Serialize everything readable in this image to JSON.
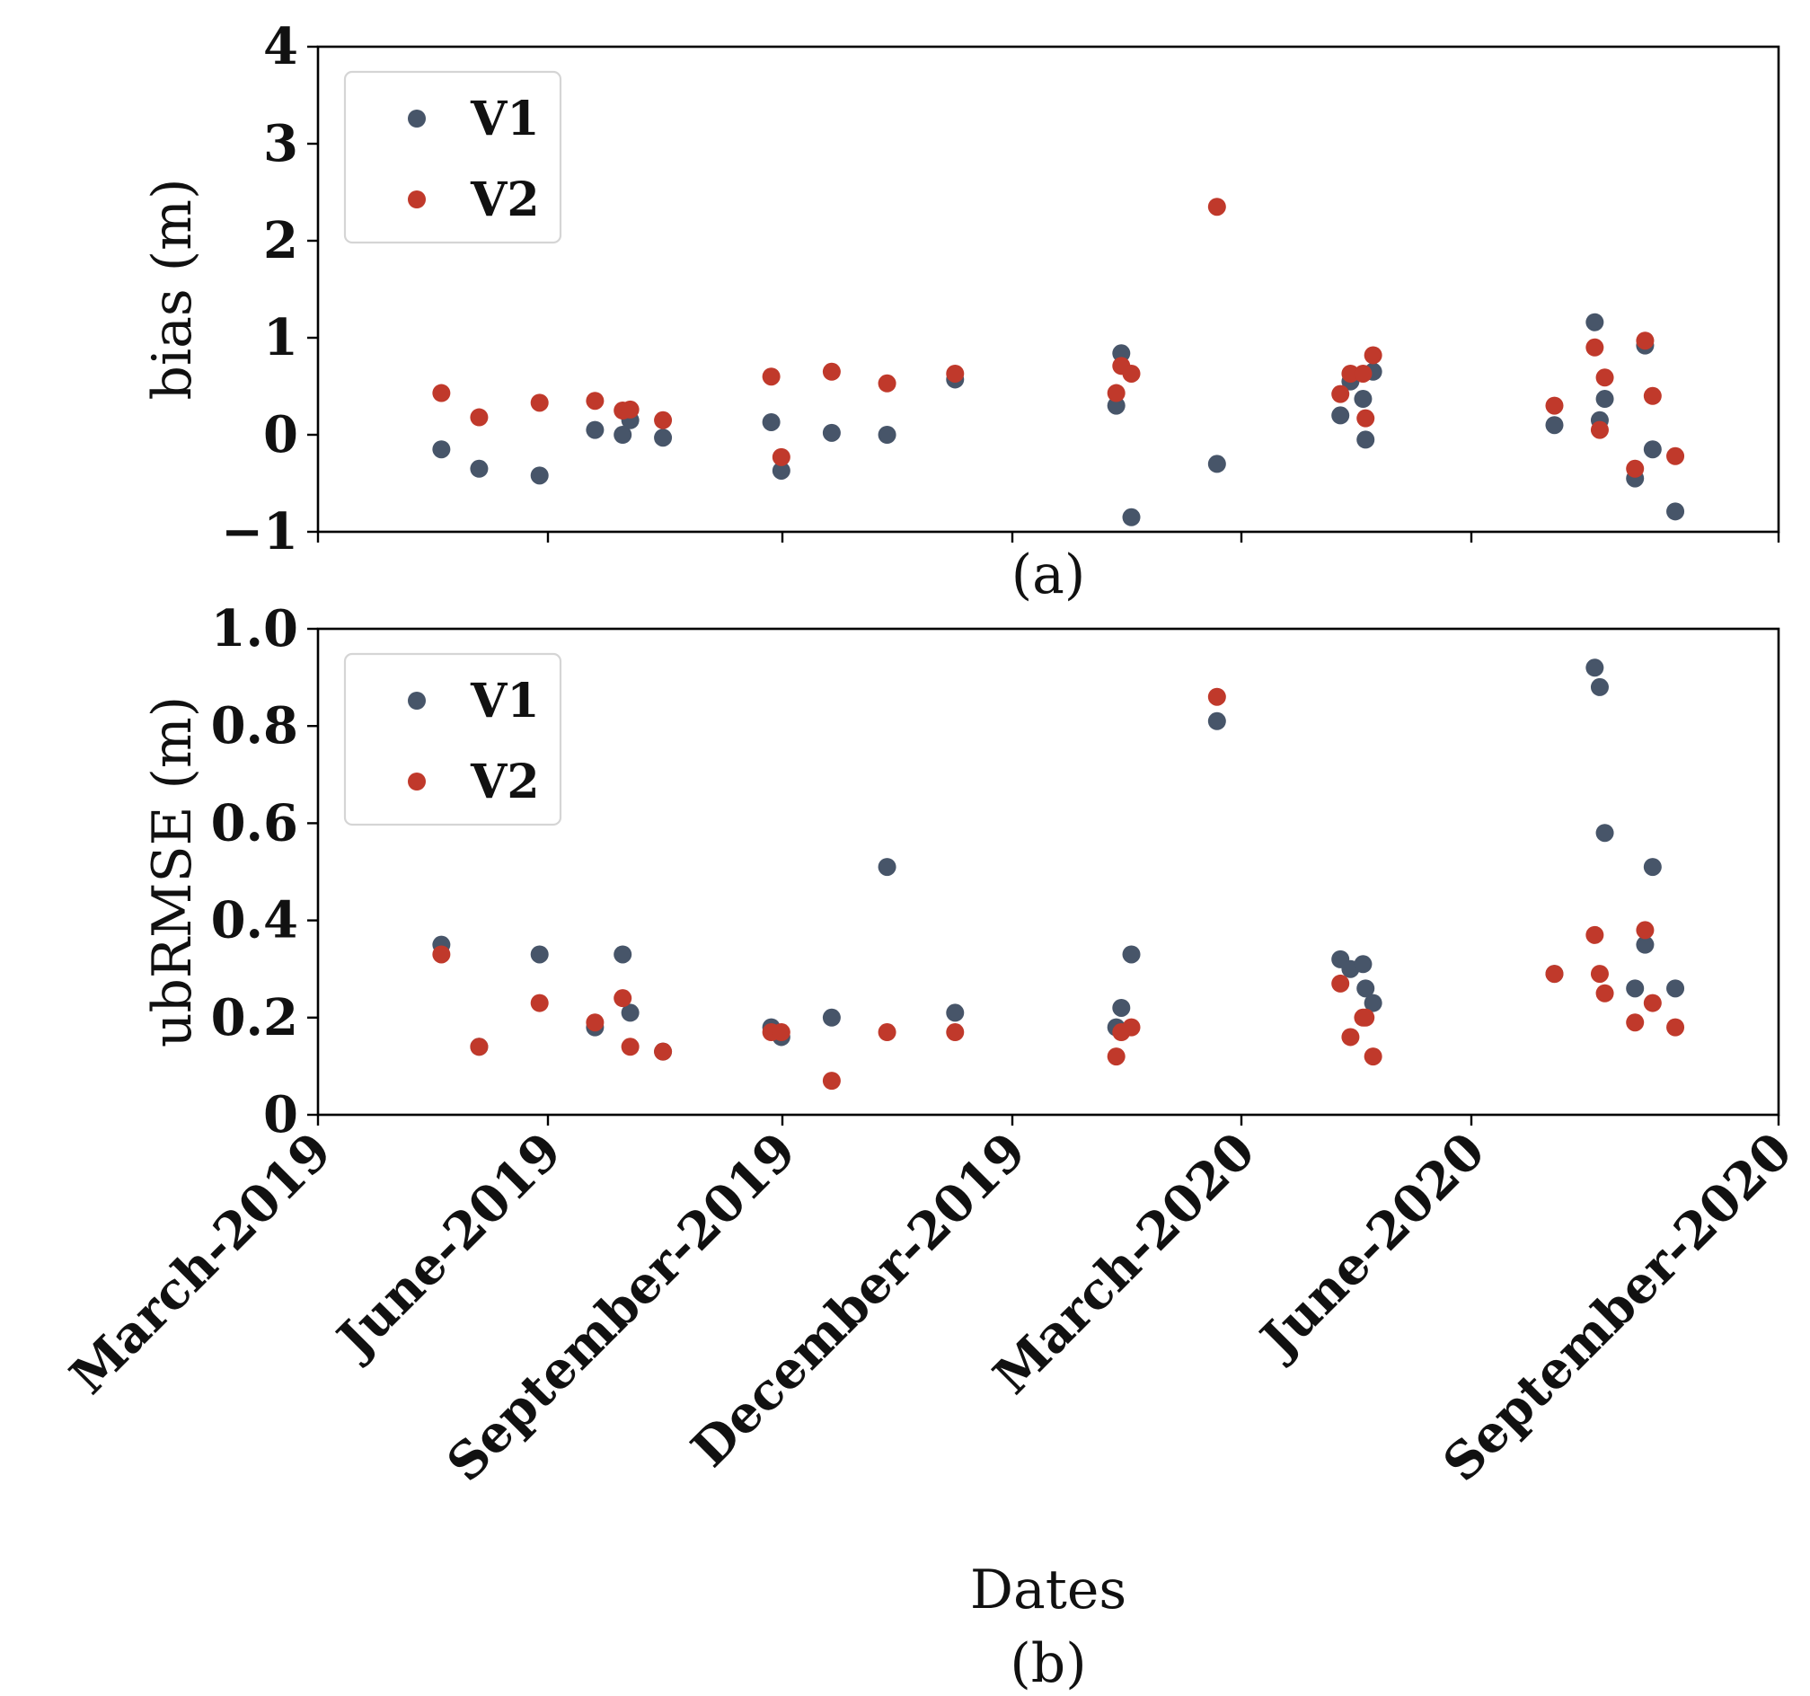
{
  "chart_data": [
    {
      "type": "scatter",
      "panel_label": "(a)",
      "ylabel": "bias (m)",
      "xlabel": "",
      "ylim": [
        -1,
        4
      ],
      "yticks": [
        "−1",
        "0",
        "1",
        "2",
        "3",
        "4"
      ],
      "ytick_values": [
        -1,
        0,
        1,
        2,
        3,
        4
      ],
      "x_ticks": [
        "March-2019",
        "June-2019",
        "September-2019",
        "December-2019",
        "March-2020",
        "June-2020",
        "September-2020"
      ],
      "x_range_days": [
        0,
        580
      ],
      "legend_position": "upper-left",
      "series": [
        {
          "name": "V1",
          "color": "#475569",
          "x_days": [
            49,
            64,
            88,
            110,
            121,
            124,
            137,
            180,
            184,
            204,
            226,
            253,
            317,
            319,
            323,
            357,
            406,
            410,
            415,
            416,
            419,
            491,
            507,
            509,
            511,
            523,
            527,
            530,
            539
          ],
          "y": [
            -0.15,
            -0.35,
            -0.42,
            0.05,
            0.0,
            0.15,
            -0.03,
            0.13,
            -0.37,
            0.02,
            0.0,
            0.57,
            0.3,
            0.84,
            -0.85,
            -0.3,
            0.2,
            0.55,
            0.37,
            -0.05,
            0.65,
            0.1,
            1.16,
            0.15,
            0.37,
            -0.45,
            0.92,
            -0.15,
            -0.79
          ]
        },
        {
          "name": "V2",
          "color": "#c0392b",
          "x_days": [
            49,
            64,
            88,
            110,
            121,
            124,
            137,
            180,
            184,
            204,
            226,
            253,
            317,
            319,
            323,
            357,
            406,
            410,
            415,
            416,
            419,
            491,
            507,
            509,
            511,
            523,
            527,
            530,
            539
          ],
          "y": [
            0.43,
            0.18,
            0.33,
            0.35,
            0.25,
            0.26,
            0.15,
            0.6,
            -0.23,
            0.65,
            0.53,
            0.63,
            0.43,
            0.71,
            0.63,
            2.35,
            0.42,
            0.63,
            0.63,
            0.17,
            0.82,
            0.3,
            0.9,
            0.05,
            0.59,
            -0.35,
            0.97,
            0.4,
            -0.22
          ]
        }
      ]
    },
    {
      "type": "scatter",
      "panel_label": "(b)",
      "ylabel": "ubRMSE (m)",
      "xlabel": "Dates",
      "ylim": [
        0,
        1.0
      ],
      "yticks": [
        "0",
        "0.2",
        "0.4",
        "0.6",
        "0.8",
        "1.0"
      ],
      "ytick_values": [
        0,
        0.2,
        0.4,
        0.6,
        0.8,
        1.0
      ],
      "x_ticks": [
        "March-2019",
        "June-2019",
        "September-2019",
        "December-2019",
        "March-2020",
        "June-2020",
        "September-2020"
      ],
      "x_range_days": [
        0,
        580
      ],
      "legend_position": "upper-left",
      "series": [
        {
          "name": "V1",
          "color": "#475569",
          "x_days": [
            49,
            64,
            88,
            110,
            121,
            124,
            137,
            180,
            184,
            204,
            226,
            253,
            317,
            319,
            323,
            357,
            406,
            410,
            415,
            416,
            419,
            491,
            507,
            509,
            511,
            523,
            527,
            530,
            539
          ],
          "y": [
            0.35,
            0.14,
            0.33,
            0.18,
            0.33,
            0.21,
            0.13,
            0.18,
            0.16,
            0.2,
            0.51,
            0.21,
            0.18,
            0.22,
            0.33,
            0.81,
            0.32,
            0.3,
            0.31,
            0.26,
            0.23,
            0.29,
            0.92,
            0.88,
            0.58,
            0.26,
            0.35,
            0.51,
            0.26
          ]
        },
        {
          "name": "V2",
          "color": "#c0392b",
          "x_days": [
            49,
            64,
            88,
            110,
            121,
            124,
            137,
            180,
            184,
            204,
            226,
            253,
            317,
            319,
            323,
            357,
            406,
            410,
            415,
            416,
            419,
            491,
            507,
            509,
            511,
            523,
            527,
            530,
            539
          ],
          "y": [
            0.33,
            0.14,
            0.23,
            0.19,
            0.24,
            0.14,
            0.13,
            0.17,
            0.17,
            0.07,
            0.17,
            0.17,
            0.12,
            0.17,
            0.18,
            0.86,
            0.27,
            0.16,
            0.2,
            0.2,
            0.12,
            0.29,
            0.37,
            0.29,
            0.25,
            0.19,
            0.38,
            0.23,
            0.18
          ]
        }
      ]
    }
  ]
}
